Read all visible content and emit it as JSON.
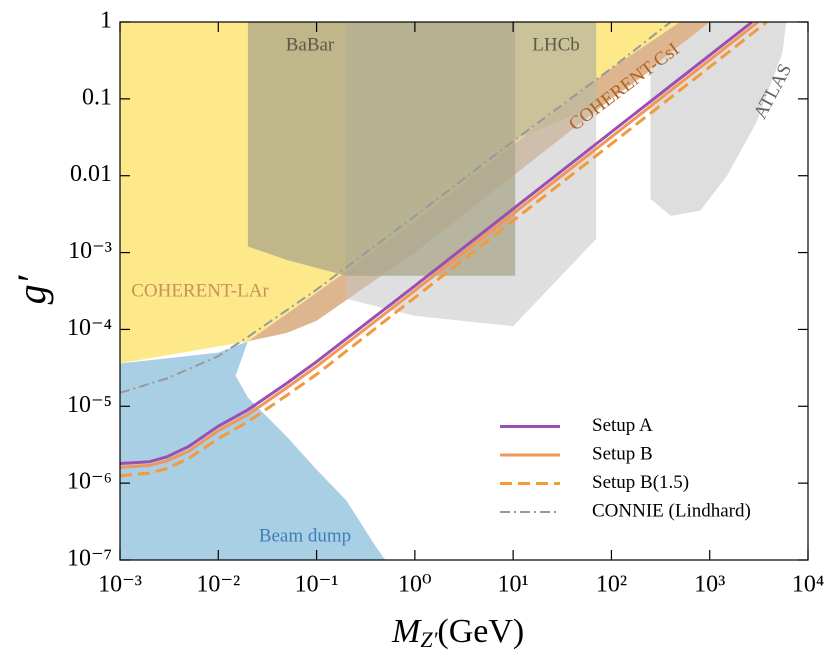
{
  "chart_data": {
    "type": "line",
    "xlabel": {
      "symbol": "M",
      "subscript": "Z′",
      "unit": "(GeV)"
    },
    "ylabel": "g′",
    "xscale": "log",
    "yscale": "log",
    "xlim": [
      0.001,
      10000
    ],
    "ylim": [
      1e-07,
      1
    ],
    "xticks": [
      {
        "value": 0.001,
        "label": "10⁻³"
      },
      {
        "value": 0.01,
        "label": "10⁻²"
      },
      {
        "value": 0.1,
        "label": "10⁻¹"
      },
      {
        "value": 1,
        "label": "10⁰"
      },
      {
        "value": 10,
        "label": "10¹"
      },
      {
        "value": 100,
        "label": "10²"
      },
      {
        "value": 1000,
        "label": "10³"
      },
      {
        "value": 10000,
        "label": "10⁴"
      }
    ],
    "yticks": [
      {
        "value": 1e-07,
        "label": "10⁻⁷"
      },
      {
        "value": 1e-06,
        "label": "10⁻⁶"
      },
      {
        "value": 1e-05,
        "label": "10⁻⁵"
      },
      {
        "value": 0.0001,
        "label": "10⁻⁴"
      },
      {
        "value": 0.001,
        "label": "10⁻³"
      },
      0.01,
      0.1,
      1
    ],
    "legend": "lower right",
    "regions": [
      {
        "name": "COHERENT-LAr",
        "color": "#fde98a",
        "label_color": "#c8915a",
        "x": [
          0.001,
          500,
          100,
          10,
          1,
          0.1,
          0.02,
          0.001
        ],
        "y": [
          1,
          1,
          0.25,
          0.025,
          0.0025,
          0.0003,
          7e-05,
          3.6e-05
        ]
      },
      {
        "name": "COHERENT-CsI",
        "color": "#ddb58e",
        "label_color": "#b0621e",
        "x": [
          0.02,
          0.1,
          1,
          10,
          100,
          500,
          1200,
          100,
          10,
          1,
          0.1,
          0.05
        ],
        "y": [
          7e-05,
          0.0003,
          0.0025,
          0.025,
          0.25,
          1,
          1,
          0.1,
          0.01,
          0.001,
          0.00013,
          9e-05
        ]
      },
      {
        "name": "Beam dump",
        "color": "#a9cfe4",
        "label_color": "#3d7fb8",
        "x": [
          0.001,
          0.01,
          0.02,
          0.015,
          0.02,
          0.05,
          0.1,
          0.2,
          0.4,
          0.5,
          0.001
        ],
        "y": [
          3.6e-05,
          5e-05,
          7e-05,
          2.5e-05,
          1.3e-05,
          4e-06,
          1.5e-06,
          6e-07,
          1.5e-07,
          1e-07,
          1e-07
        ]
      },
      {
        "color": "#c4c4c4",
        "opacity": 0.55,
        "x": [
          0.2,
          70,
          70,
          10,
          1,
          0.2
        ],
        "y": [
          1,
          1,
          0.0015,
          0.00011,
          0.00015,
          0.00025
        ]
      },
      {
        "name": "BaBar",
        "color": "#aaa58a",
        "opacity": 0.75,
        "label_color": "#5a5a4a",
        "x": [
          0.02,
          10.5,
          10.5,
          0.2,
          0.05,
          0.02
        ],
        "y": [
          1,
          1,
          0.0005,
          0.0005,
          0.0008,
          0.0012
        ]
      },
      {
        "name": "LHCb",
        "color": "#bdb68e",
        "opacity": 0.6,
        "label_color": "#5a5a4a",
        "x": [
          10.5,
          70,
          70,
          10.5
        ],
        "y": [
          1,
          1,
          0.08,
          0.03
        ]
      },
      {
        "name": "ATLAS",
        "color": "#dedede",
        "label_color": "#666666",
        "x": [
          250,
          250,
          400,
          800,
          1500,
          3000,
          5500,
          6000,
          1000
        ],
        "y": [
          0.25,
          0.005,
          0.003,
          0.0035,
          0.01,
          0.05,
          0.4,
          1,
          1
        ]
      }
    ],
    "series": [
      {
        "name": "Setup A",
        "color": "#9b4fb0",
        "dash": "solid",
        "x": [
          0.001,
          0.002,
          0.003,
          0.005,
          0.01,
          0.02,
          0.05,
          0.1,
          1,
          10,
          100,
          1000,
          2700
        ],
        "values": [
          1.8e-06,
          1.9e-06,
          2.2e-06,
          3e-06,
          5.5e-06,
          9e-06,
          2e-05,
          3.8e-05,
          0.00037,
          0.0037,
          0.037,
          0.37,
          1
        ]
      },
      {
        "name": "Setup B",
        "color": "#f4955a",
        "dash": "solid",
        "x": [
          0.001,
          0.002,
          0.003,
          0.005,
          0.01,
          0.02,
          0.05,
          0.1,
          1,
          10,
          100,
          1000,
          3100
        ],
        "values": [
          1.6e-06,
          1.7e-06,
          1.95e-06,
          2.6e-06,
          4.8e-06,
          7.8e-06,
          1.75e-05,
          3.3e-05,
          0.00032,
          0.0032,
          0.032,
          0.32,
          1
        ]
      },
      {
        "name": "Setup B(1.5)",
        "color": "#f39a3c",
        "dash": "dashed",
        "x": [
          0.001,
          0.002,
          0.003,
          0.005,
          0.01,
          0.02,
          0.05,
          0.1,
          1,
          10,
          100,
          1000,
          3800
        ],
        "values": [
          1.25e-06,
          1.35e-06,
          1.55e-06,
          2.1e-06,
          3.8e-06,
          6.3e-06,
          1.4e-05,
          2.6e-05,
          0.00026,
          0.0026,
          0.026,
          0.26,
          1
        ]
      },
      {
        "name": "CONNIE (Lindhard)",
        "color": "#999999",
        "dash": "dashdot",
        "x": [
          0.001,
          0.003,
          0.01,
          0.02,
          0.1,
          1,
          10,
          100,
          400
        ],
        "values": [
          1.5e-05,
          2.3e-05,
          4.5e-05,
          8e-05,
          0.00033,
          0.003,
          0.028,
          0.25,
          1
        ]
      }
    ]
  }
}
